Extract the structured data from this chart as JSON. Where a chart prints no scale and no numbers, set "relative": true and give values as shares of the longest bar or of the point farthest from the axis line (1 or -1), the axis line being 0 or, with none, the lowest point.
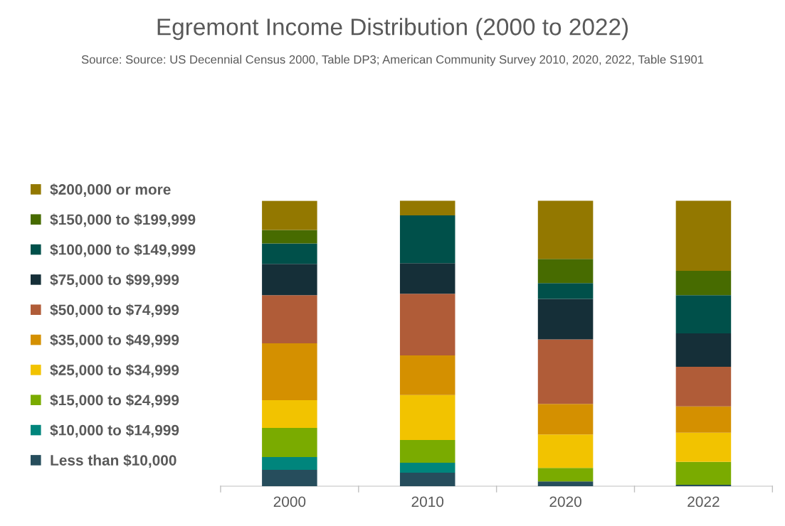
{
  "chart_data": {
    "type": "bar",
    "title": "Egremont Income Distribution (2000 to 2022)",
    "subtitle": "Source: Source: US Decennial Census 2000, Table DP3; American Community Survey 2010, 2020, 2022, Table S1901",
    "categories": [
      "2000",
      "2010",
      "2020",
      "2022"
    ],
    "stacked": true,
    "relative": true,
    "legend": "left",
    "grid": false,
    "series": [
      {
        "name": "Less than $10,000",
        "color": "#264d5c",
        "values": [
          0.057,
          0.047,
          0.017,
          0.005
        ]
      },
      {
        "name": "$10,000 to $14,999",
        "color": "#00857c",
        "values": [
          0.045,
          0.035,
          0.0,
          0.0
        ]
      },
      {
        "name": "$15,000 to $24,999",
        "color": "#7aab00",
        "values": [
          0.102,
          0.08,
          0.047,
          0.08
        ]
      },
      {
        "name": "$25,000 to $34,999",
        "color": "#f2c300",
        "values": [
          0.097,
          0.157,
          0.117,
          0.102
        ]
      },
      {
        "name": "$35,000 to $49,999",
        "color": "#d49000",
        "values": [
          0.199,
          0.139,
          0.107,
          0.092
        ]
      },
      {
        "name": "$50,000 to $74,999",
        "color": "#b05c38",
        "values": [
          0.169,
          0.216,
          0.226,
          0.139
        ]
      },
      {
        "name": "$75,000 to $99,999",
        "color": "#152f38",
        "values": [
          0.109,
          0.107,
          0.142,
          0.117
        ]
      },
      {
        "name": "$100,000 to $149,999",
        "color": "#00504a",
        "values": [
          0.072,
          0.167,
          0.055,
          0.134
        ]
      },
      {
        "name": "$150,000 to $199,999",
        "color": "#476b00",
        "values": [
          0.047,
          0.0,
          0.085,
          0.085
        ]
      },
      {
        "name": "$200,000 or more",
        "color": "#937800",
        "values": [
          0.102,
          0.052,
          0.204,
          0.246
        ]
      }
    ]
  }
}
